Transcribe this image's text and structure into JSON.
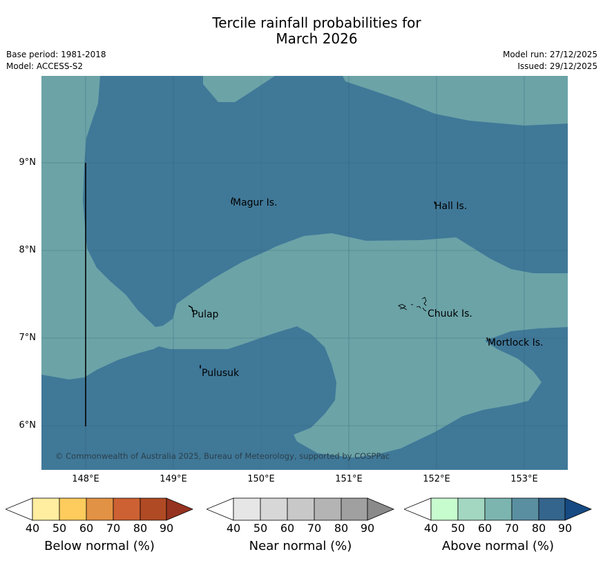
{
  "title": {
    "line1": "Tercile rainfall probabilities for",
    "line2": "March 2026"
  },
  "meta_left": {
    "base_period": "Base period: 1981-2018",
    "model": "Model: ACCESS-S2"
  },
  "meta_right": {
    "model_run": "Model run: 27/12/2025",
    "issued": "Issued: 29/12/2025"
  },
  "map": {
    "lat_labels": [
      "9°N",
      "8°N",
      "7°N",
      "6°N"
    ],
    "lon_labels": [
      "148°E",
      "149°E",
      "150°E",
      "151°E",
      "152°E",
      "153°E"
    ],
    "places": [
      "Magur Is.",
      "Hall Is.",
      "Pulap",
      "Chuuk Is.",
      "Mortlock Is.",
      "Pulusuk"
    ],
    "copyright": "© Commonwealth of Australia 2025, Bureau of Meteorology, supported by COSPPac",
    "colors": {
      "above_70_80": "#6ba3a7",
      "above_80_90": "#407898"
    }
  },
  "legend": {
    "ticks": [
      "40",
      "50",
      "60",
      "70",
      "80",
      "90"
    ],
    "below": {
      "title": "Below normal (%)",
      "colors": [
        "#ffffff",
        "#ffeda0",
        "#fecc5c",
        "#e29244",
        "#cd6133",
        "#b04a24",
        "#963220"
      ]
    },
    "near": {
      "title": "Near normal (%)",
      "colors": [
        "#ffffff",
        "#e6e6e6",
        "#d7d7d7",
        "#c8c8c8",
        "#b4b4b4",
        "#a0a0a0",
        "#8a8a8a"
      ]
    },
    "above": {
      "title": "Above normal (%)",
      "colors": [
        "#ffffff",
        "#c7fccf",
        "#a3d7c1",
        "#7cb5b0",
        "#5a8fa2",
        "#34658d",
        "#164a82"
      ]
    }
  }
}
